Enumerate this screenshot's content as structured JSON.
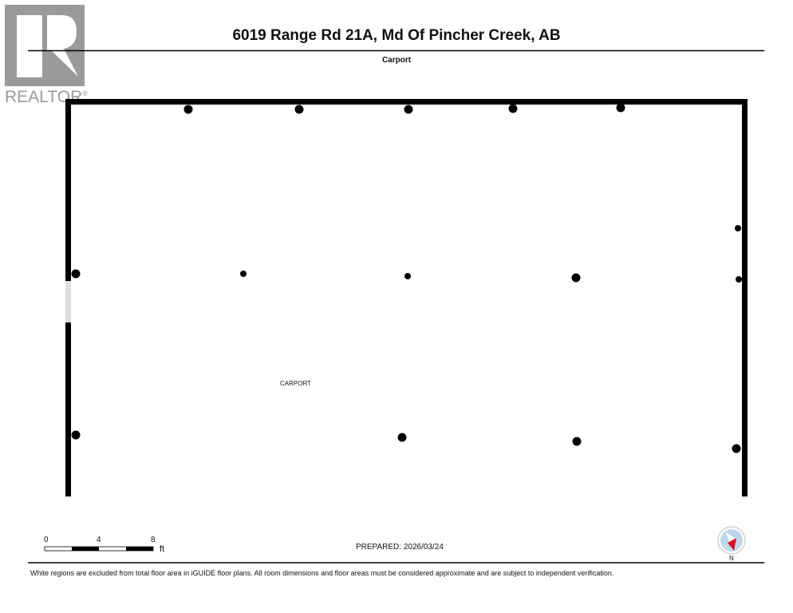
{
  "logo": {
    "text": "REALTOR®",
    "color": "#9a9a9a"
  },
  "header": {
    "title": "6019 Range Rd 21A, Md Of Pincher Creek, AB",
    "subtitle": "Carport"
  },
  "plan": {
    "room_label": "CARPORT",
    "wall_color": "#000000"
  },
  "scale": {
    "ticks": [
      "0",
      "4",
      "8"
    ],
    "unit": "ft"
  },
  "footer": {
    "prepared": "PREPARED: 2026/03/24",
    "disclaimer": "White regions are excluded from total floor area in iGUIDE floor plans. All room dimensions and floor areas must be considered approximate and are subject to independent verification."
  },
  "compass": {
    "label": "N",
    "icon": "compass-icon",
    "needle_color": "#e01020"
  }
}
